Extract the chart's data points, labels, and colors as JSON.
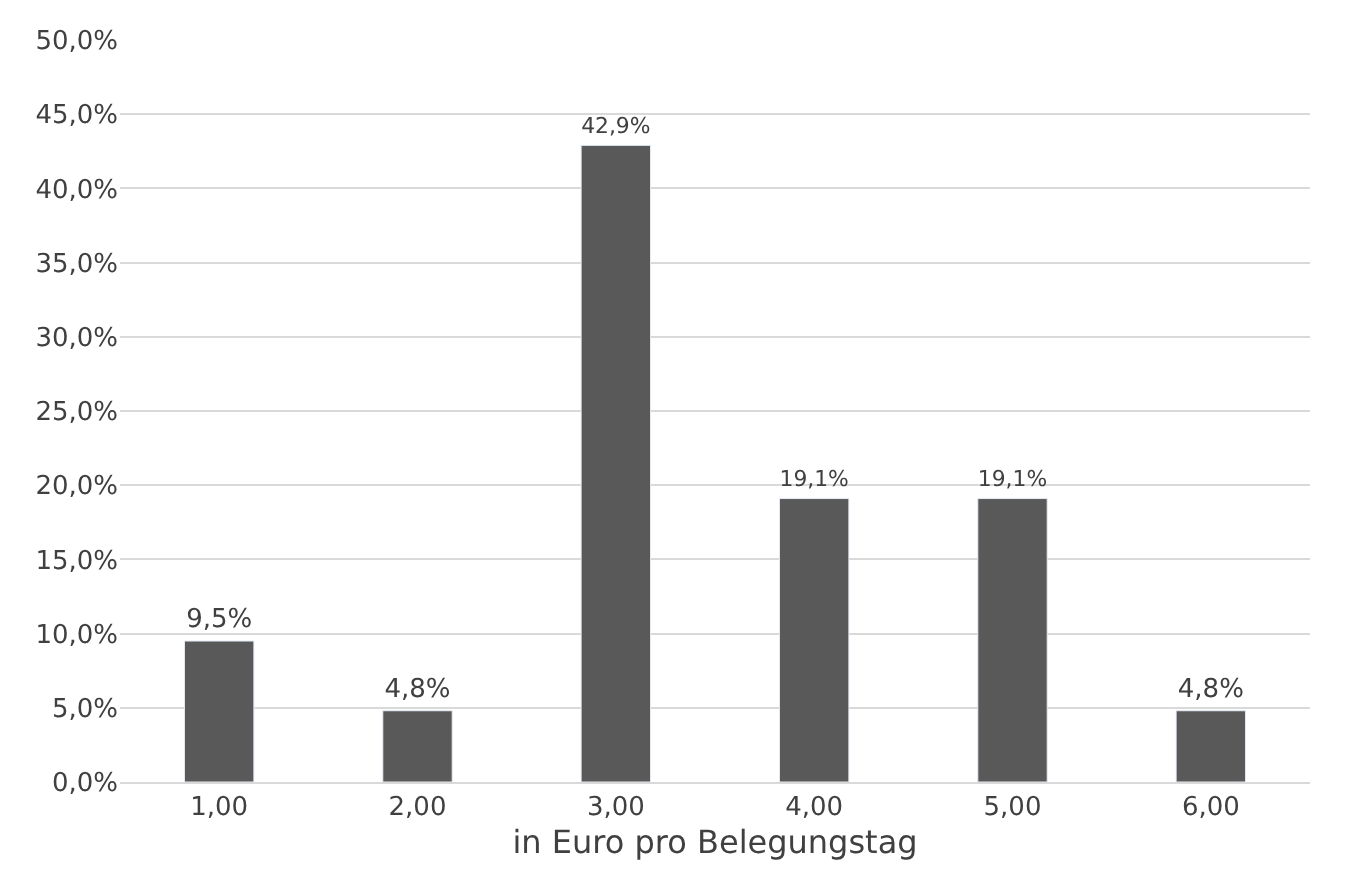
{
  "chart_data": {
    "type": "bar",
    "xlabel": "in Euro pro Belegungstag",
    "categories": [
      "1,00",
      "2,00",
      "3,00",
      "4,00",
      "5,00",
      "6,00"
    ],
    "values": [
      9.5,
      4.8,
      42.9,
      19.1,
      19.1,
      4.8
    ],
    "value_labels": [
      "9,5%",
      "4,8%",
      "42,9%",
      "19,1%",
      "19,1%",
      "4,8%"
    ],
    "color": "#595959",
    "ylim": [
      0,
      50
    ],
    "yticks": [
      {
        "value": 0,
        "label": "0,0%"
      },
      {
        "value": 5,
        "label": "5,0%"
      },
      {
        "value": 10,
        "label": "10,0%"
      },
      {
        "value": 15,
        "label": "15,0%"
      },
      {
        "value": 20,
        "label": "20,0%"
      },
      {
        "value": 25,
        "label": "25,0%"
      },
      {
        "value": 30,
        "label": "30,0%"
      },
      {
        "value": 35,
        "label": "35,0%"
      },
      {
        "value": 40,
        "label": "40,0%"
      },
      {
        "value": 45,
        "label": "45,0%"
      },
      {
        "value": 50,
        "label": "50,0%"
      }
    ],
    "grid": "y",
    "legend": false
  }
}
